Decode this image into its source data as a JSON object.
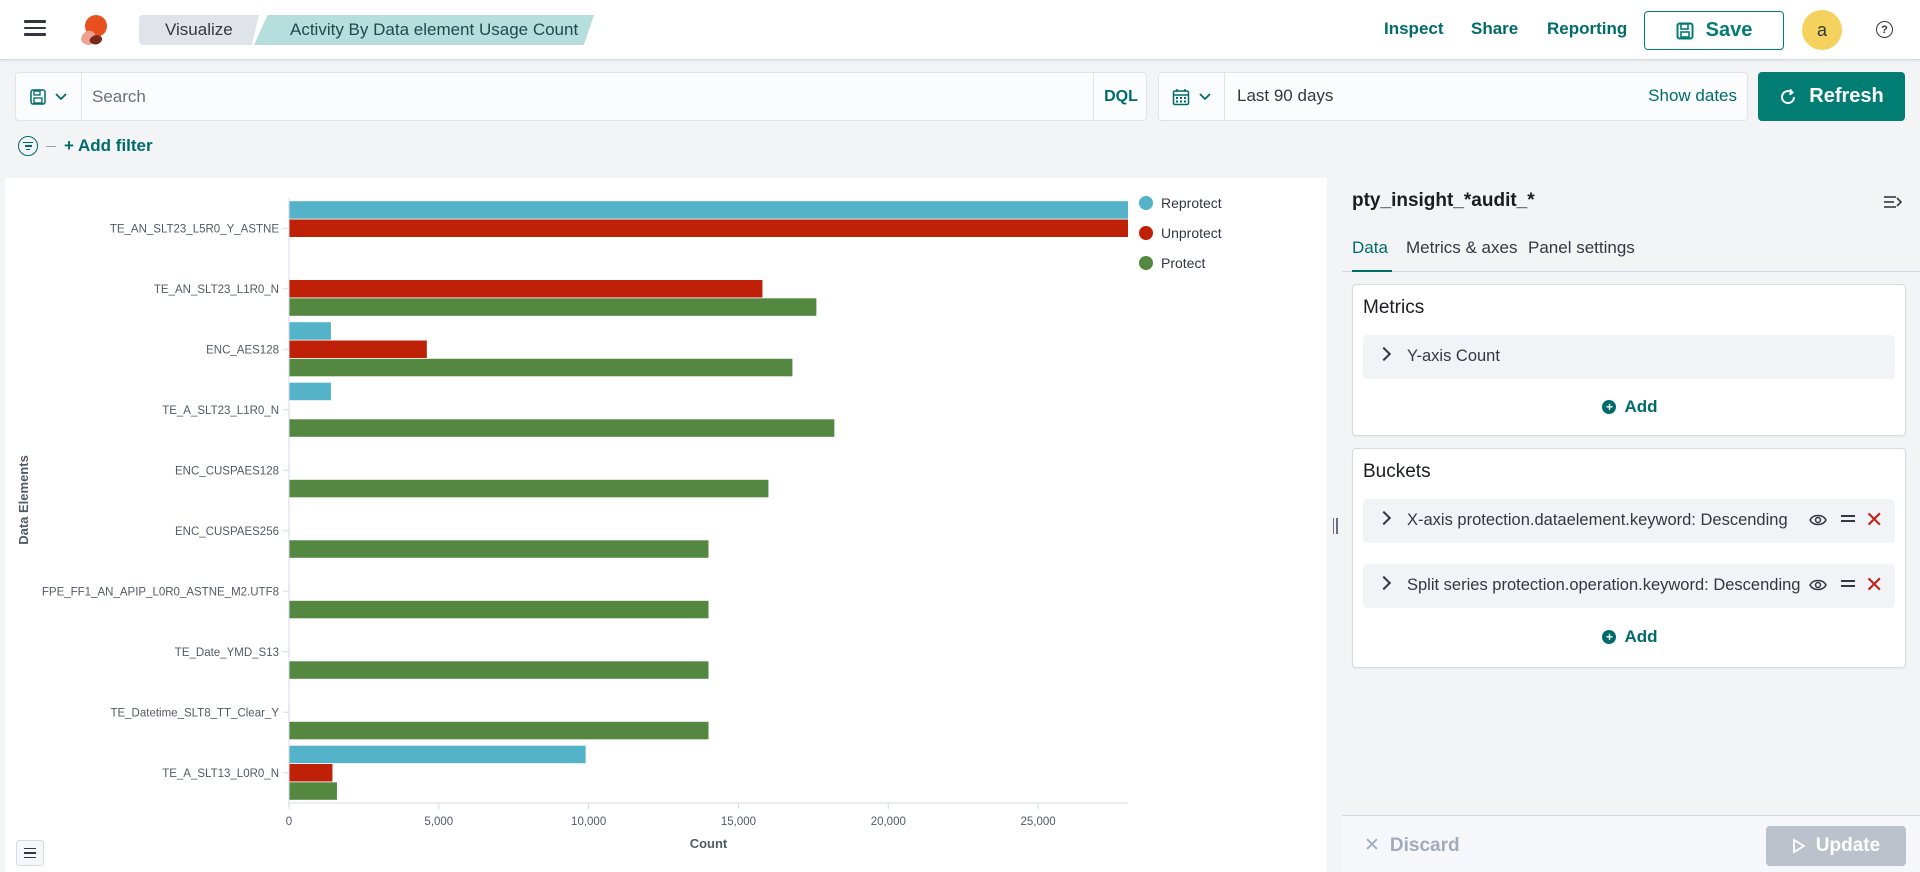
{
  "header": {
    "breadcrumbs": [
      "Visualize",
      "Activity By Data element Usage Count"
    ],
    "links": [
      "Inspect",
      "Share",
      "Reporting"
    ],
    "save_label": "Save",
    "avatar_initial": "a"
  },
  "query": {
    "placeholder": "Search",
    "language": "DQL",
    "time_range": "Last 90 days",
    "show_dates": "Show dates",
    "refresh_label": "Refresh",
    "add_filter": "+ Add filter"
  },
  "chart_data": {
    "type": "bar",
    "orientation": "horizontal",
    "categories": [
      "TE_AN_SLT23_L5R0_Y_ASTNE",
      "TE_AN_SLT23_L1R0_N",
      "ENC_AES128",
      "TE_A_SLT23_L1R0_N",
      "ENC_CUSPAES128",
      "ENC_CUSPAES256",
      "FPE_FF1_AN_APIP_L0R0_ASTNE_M2.UTF8",
      "TE_Date_YMD_S13",
      "TE_Datetime_SLT8_TT_Clear_Y",
      "TE_A_SLT13_L0R0_N"
    ],
    "series": [
      {
        "name": "Reprotect",
        "color": "#54b3c8",
        "values": [
          28000,
          0,
          1400,
          1400,
          0,
          0,
          0,
          0,
          0,
          9900
        ]
      },
      {
        "name": "Unprotect",
        "color": "#bf2108",
        "values": [
          28000,
          15800,
          4600,
          0,
          0,
          0,
          0,
          0,
          0,
          1450
        ]
      },
      {
        "name": "Protect",
        "color": "#54873f",
        "values": [
          0,
          17600,
          16800,
          18200,
          16000,
          14000,
          14000,
          14000,
          14000,
          1600
        ]
      }
    ],
    "xlabel": "Count",
    "ylabel": "Data Elements",
    "xlim": [
      0,
      28000
    ],
    "x_ticks": [
      "0",
      "5,000",
      "10,000",
      "15,000",
      "20,000",
      "25,000"
    ],
    "x_tick_values": [
      0,
      5000,
      10000,
      15000,
      20000,
      25000
    ],
    "legend_position": "top-right",
    "grid": false
  },
  "editor": {
    "index_pattern": "pty_insight_*audit_*",
    "tabs": [
      "Data",
      "Metrics & axes",
      "Panel settings"
    ],
    "metrics_title": "Metrics",
    "metrics": [
      "Y-axis Count"
    ],
    "buckets_title": "Buckets",
    "buckets": [
      "X-axis protection.dataelement.keyword: Descending",
      "Split series protection.operation.keyword: Descending"
    ],
    "add_label": "Add",
    "discard_label": "Discard",
    "update_label": "Update"
  }
}
